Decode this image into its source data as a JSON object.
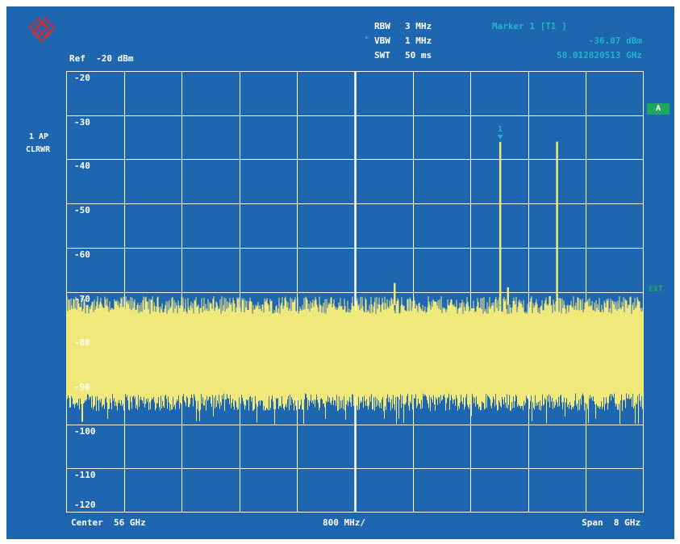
{
  "header": {
    "rbw_label": "RBW",
    "rbw_value": "3 MHz",
    "vbw_label": "VBW",
    "vbw_value": "1 MHz",
    "vbw_star": "*",
    "swt_label": "SWT",
    "swt_value": "50 ms",
    "ref_label": "Ref  -20 dBm"
  },
  "marker": {
    "title": "Marker 1 [T1 ]",
    "level": "-36.07 dBm",
    "frequency": "58.012820513 GHz",
    "label": "1"
  },
  "trace_info": {
    "line1": "1 AP",
    "line2": "CLRWR"
  },
  "side_annotations": {
    "softkey_a": "A",
    "ext": "EXT"
  },
  "footer": {
    "center": "Center  56 GHz",
    "per_div": "800 MHz/",
    "span": "Span  8 GHz"
  },
  "colors": {
    "background": "#1f66b0",
    "grid": "#ffffff",
    "trace": "#f0e87a",
    "marker": "#1fb5c8",
    "softkey": "#1ea85a"
  },
  "chart_data": {
    "type": "line",
    "title": "",
    "xlabel": "",
    "ylabel": "",
    "x_unit": "GHz",
    "y_unit": "dBm",
    "xlim": [
      52,
      60
    ],
    "ylim": [
      -120,
      -20
    ],
    "y_ticks": [
      "-20",
      "-30",
      "-40",
      "-50",
      "-60",
      "-70",
      "-80",
      "-90",
      "-100",
      "-110",
      "-120"
    ],
    "grid": true,
    "noise_floor": {
      "upper_dbm": -73,
      "lower_dbm": -95,
      "min_dbm": -100
    },
    "peaks": [
      {
        "x": 56.0,
        "y": -73
      },
      {
        "x": 56.55,
        "y": -68
      },
      {
        "x": 58.0128,
        "y": -36.07
      },
      {
        "x": 58.12,
        "y": -69
      },
      {
        "x": 58.7,
        "y": -71
      },
      {
        "x": 58.8,
        "y": -36
      }
    ],
    "marker": {
      "x": 58.012820513,
      "y": -36.07
    }
  }
}
